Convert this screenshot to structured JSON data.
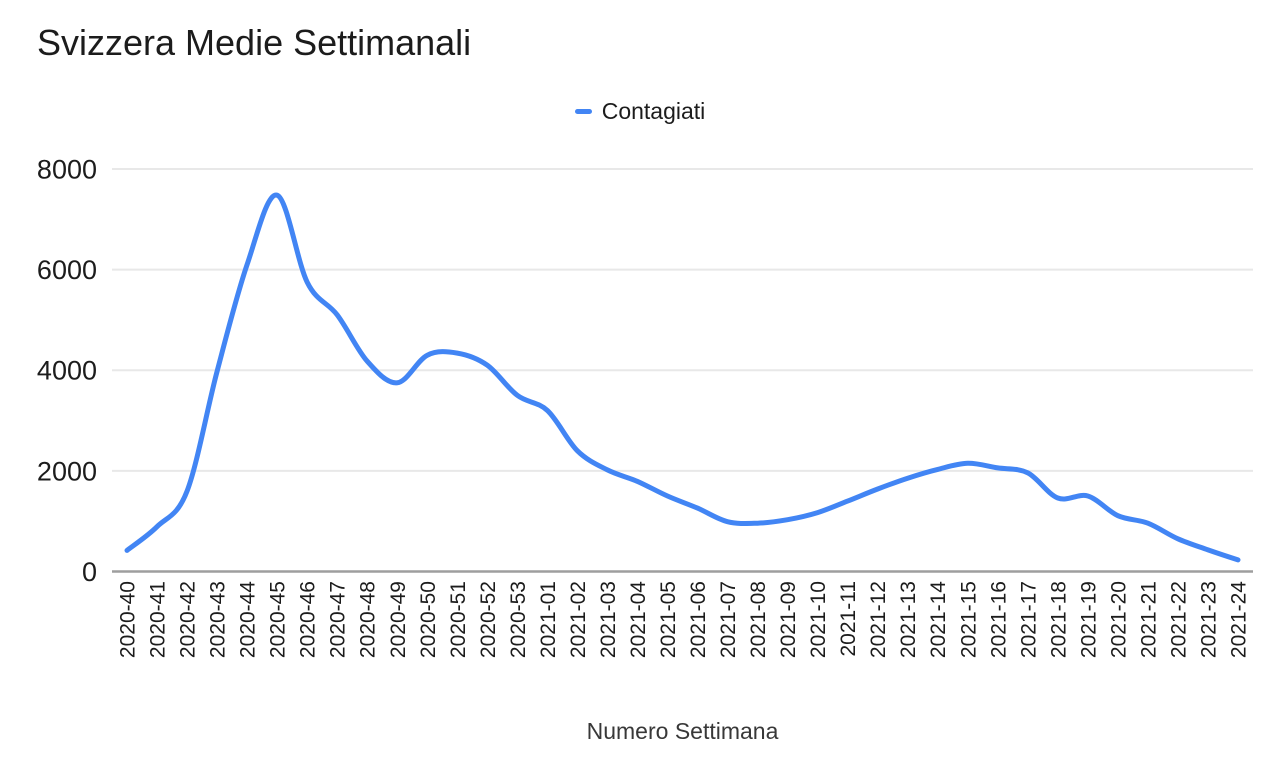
{
  "title": "Svizzera Medie Settimanali",
  "xlabel": "Numero Settimana",
  "legend": {
    "items": [
      {
        "label": "Contagiati",
        "color": "#4285f4"
      }
    ]
  },
  "colors": {
    "series_blue": "#4285f4",
    "gridline": "#e8e8e8",
    "axis_line": "#9e9e9e",
    "text": "#1c1c1c"
  },
  "chart_data": {
    "type": "line",
    "title": "Svizzera Medie Settimanali",
    "xlabel": "Numero Settimana",
    "ylabel": "",
    "legend_position": "top",
    "grid": true,
    "smooth": true,
    "ylim": [
      0,
      8000
    ],
    "yticks": [
      0,
      2000,
      4000,
      6000,
      8000
    ],
    "categories": [
      "2020-40",
      "2020-41",
      "2020-42",
      "2020-43",
      "2020-44",
      "2020-45",
      "2020-46",
      "2020-47",
      "2020-48",
      "2020-49",
      "2020-50",
      "2020-51",
      "2020-52",
      "2020-53",
      "2021-01",
      "2021-02",
      "2021-03",
      "2021-04",
      "2021-05",
      "2021-06",
      "2021-07",
      "2021-08",
      "2021-09",
      "2021-10",
      "2021-11",
      "2021-12",
      "2021-13",
      "2021-14",
      "2021-15",
      "2021-16",
      "2021-17",
      "2021-18",
      "2021-19",
      "2021-20",
      "2021-21",
      "2021-22",
      "2021-23",
      "2021-24"
    ],
    "series": [
      {
        "name": "Contagiati",
        "color": "#4285f4",
        "values": [
          420,
          890,
          1600,
          3980,
          6100,
          7480,
          5750,
          5100,
          4180,
          3750,
          4300,
          4340,
          4100,
          3500,
          3200,
          2400,
          2020,
          1790,
          1500,
          1260,
          990,
          960,
          1030,
          1170,
          1400,
          1640,
          1855,
          2030,
          2150,
          2060,
          1960,
          1460,
          1500,
          1110,
          960,
          650,
          430,
          230
        ]
      }
    ]
  }
}
